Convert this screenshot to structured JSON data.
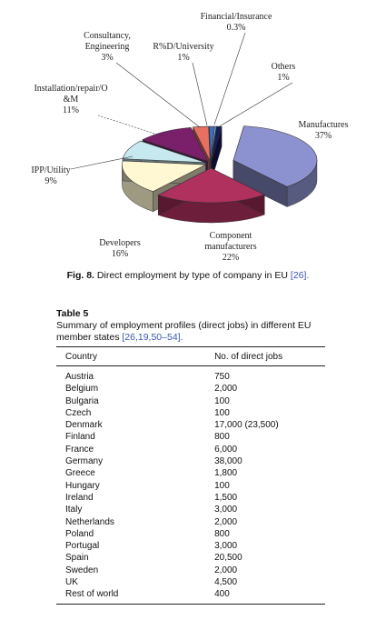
{
  "figure": {
    "caption_label": "Fig. 8.",
    "caption_text": " Direct employment by type of company in EU ",
    "caption_ref": "[26].",
    "chart_data": {
      "type": "pie",
      "slices": [
        {
          "name": "Manufactures",
          "percent_label": "37%",
          "value": 37,
          "color": "#8c92cf"
        },
        {
          "name": "Component manufacturers",
          "percent_label": "22%",
          "value": 22,
          "color": "#b0305e"
        },
        {
          "name": "Developers",
          "percent_label": "16%",
          "value": 16,
          "color": "#fff8d2"
        },
        {
          "name": "IPP/Utility",
          "percent_label": "9%",
          "value": 9,
          "color": "#c6e8ef"
        },
        {
          "name": "Installation/repair/O&M",
          "percent_label": "11%",
          "value": 11,
          "color": "#7a1f6a"
        },
        {
          "name": "Consultancy, Engineering",
          "percent_label": "3%",
          "value": 3,
          "color": "#e87060"
        },
        {
          "name": "R%D/University",
          "percent_label": "1%",
          "value": 1,
          "color": "#3d6fc0"
        },
        {
          "name": "Financial/Insurance",
          "percent_label": "0.3%",
          "value": 0.3,
          "color": "#8fd0e0"
        },
        {
          "name": "Others",
          "percent_label": "1%",
          "value": 1,
          "color": "#1a1a5e"
        }
      ],
      "labels": [
        {
          "lines": [
            "Manufactures",
            "37%"
          ]
        },
        {
          "lines": [
            "Component",
            "manufacturers",
            "22%"
          ]
        },
        {
          "lines": [
            "Developers",
            "16%"
          ]
        },
        {
          "lines": [
            "IPP/Utility",
            "9%"
          ]
        },
        {
          "lines": [
            "Installation/repair/O",
            "&M",
            "11%"
          ]
        },
        {
          "lines": [
            "Consultancy,",
            "Engineering",
            "3%"
          ]
        },
        {
          "lines": [
            "R%D/University",
            "1%"
          ]
        },
        {
          "lines": [
            "Financial/Insurance",
            "0.3%"
          ]
        },
        {
          "lines": [
            "Others",
            "1%"
          ]
        }
      ]
    }
  },
  "table": {
    "title": "Table 5",
    "subtitle": "Summary of employment profiles (direct jobs) in different EU member states ",
    "subtitle_ref": "[26,19,50–54].",
    "columns": [
      "Country",
      "No. of direct jobs"
    ],
    "rows": [
      [
        "Austria",
        "750"
      ],
      [
        "Belgium",
        "2,000"
      ],
      [
        "Bulgaria",
        "100"
      ],
      [
        "Czech",
        "100"
      ],
      [
        "Denmark",
        "17,000 (23,500)"
      ],
      [
        "Finland",
        "800"
      ],
      [
        "France",
        "6,000"
      ],
      [
        "Germany",
        "38,000"
      ],
      [
        "Greece",
        "1,800"
      ],
      [
        "Hungary",
        "100"
      ],
      [
        "Ireland",
        "1,500"
      ],
      [
        "Italy",
        "3,000"
      ],
      [
        "Netherlands",
        "2,000"
      ],
      [
        "Poland",
        "800"
      ],
      [
        "Portugal",
        "3,000"
      ],
      [
        "Spain",
        "20,500"
      ],
      [
        "Sweden",
        "2,000"
      ],
      [
        "UK",
        "4,500"
      ],
      [
        "Rest of world",
        "400"
      ]
    ]
  }
}
